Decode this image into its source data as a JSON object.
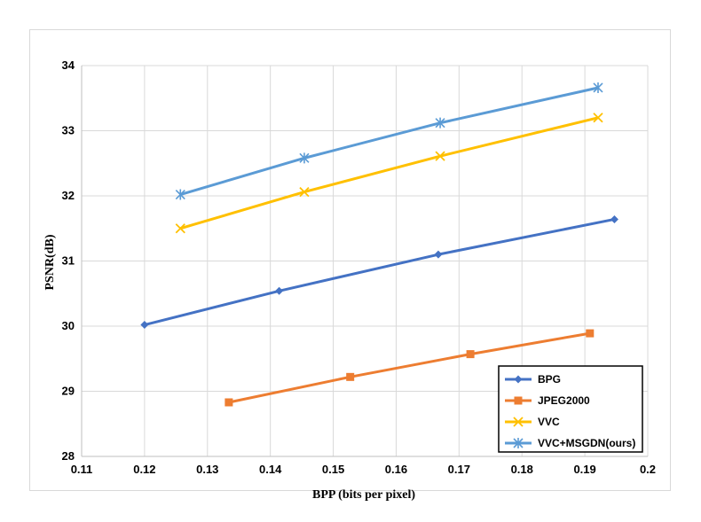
{
  "chart_data": {
    "type": "line",
    "xlabel": "BPP (bits per pixel)",
    "ylabel": "PSNR(dB)",
    "xlim": [
      0.11,
      0.2
    ],
    "ylim": [
      28,
      34
    ],
    "xticks": [
      "0.11",
      "0.12",
      "0.13",
      "0.14",
      "0.15",
      "0.16",
      "0.17",
      "0.18",
      "0.19",
      "0.2"
    ],
    "yticks": [
      "28",
      "29",
      "30",
      "31",
      "32",
      "33",
      "34"
    ],
    "grid": true,
    "legend_position": "bottom-right",
    "series": [
      {
        "name": "BPG",
        "color": "#4472C4",
        "marker": "diamond",
        "x": [
          0.12,
          0.1414,
          0.1667,
          0.1947
        ],
        "y": [
          30.02,
          30.54,
          31.1,
          31.64
        ]
      },
      {
        "name": "JPEG2000",
        "color": "#ED7D31",
        "marker": "square",
        "x": [
          0.1334,
          0.1527,
          0.1718,
          0.1908
        ],
        "y": [
          28.83,
          29.22,
          29.57,
          29.89
        ]
      },
      {
        "name": "VVC",
        "color": "#FFC000",
        "marker": "x",
        "x": [
          0.1257,
          0.1454,
          0.167,
          0.1921
        ],
        "y": [
          31.5,
          32.06,
          32.61,
          33.2
        ]
      },
      {
        "name": "VVC+MSGDN(ours)",
        "color": "#5B9BD5",
        "marker": "star",
        "x": [
          0.1257,
          0.1454,
          0.167,
          0.1921
        ],
        "y": [
          32.02,
          32.58,
          33.12,
          33.66
        ]
      }
    ]
  }
}
